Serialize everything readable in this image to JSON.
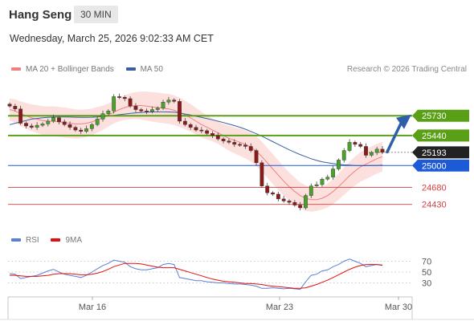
{
  "header": {
    "title": "Hang Seng",
    "timeframe": "30 MIN"
  },
  "timestamp": "Wednesday, March 25, 2026 9:02:33 AM CET",
  "credit": "Research © 2026 Trading Central",
  "legend_main": [
    {
      "label": "MA 20 + Bollinger Bands",
      "color": "#f08080"
    },
    {
      "label": "MA 50",
      "color": "#3a5f9f"
    }
  ],
  "legend_rsi": [
    {
      "label": "RSI",
      "color": "#5b7fd6"
    },
    {
      "label": "9MA",
      "color": "#e01010"
    }
  ],
  "colors": {
    "resistance": "#5aa016",
    "pivot": "#1d5bd6",
    "support": "#d84040",
    "last": "#222222",
    "arrow": "#2f5fa8",
    "bull": "#4aa22a",
    "bear": "#8b1a1a"
  },
  "chart_data": [
    {
      "type": "candlestick",
      "title": "Hang Seng",
      "interval": "30 MIN",
      "x_ticks": [
        "Mar 16",
        "Mar 23",
        "Mar 30"
      ],
      "price_levels": [
        {
          "value": 25730,
          "label": "25730",
          "kind": "resistance"
        },
        {
          "value": 25440,
          "label": "25440",
          "kind": "resistance"
        },
        {
          "value": 25193,
          "label": "25193",
          "kind": "last"
        },
        {
          "value": 25000,
          "label": "25000",
          "kind": "pivot"
        },
        {
          "value": 24680,
          "label": "24680",
          "kind": "support"
        },
        {
          "value": 24430,
          "label": "24430",
          "kind": "support"
        }
      ],
      "ylim": [
        24250,
        26250
      ],
      "close_series": [
        25870,
        25830,
        25620,
        25580,
        25560,
        25590,
        25610,
        25650,
        25700,
        25640,
        25600,
        25560,
        25520,
        25500,
        25540,
        25600,
        25680,
        25760,
        25800,
        26010,
        26000,
        25980,
        25870,
        25820,
        25800,
        25790,
        25820,
        25840,
        25930,
        25960,
        25940,
        25650,
        25600,
        25560,
        25520,
        25510,
        25470,
        25440,
        25390,
        25360,
        25340,
        25310,
        25300,
        25280,
        25220,
        25040,
        24700,
        24600,
        24580,
        24510,
        24480,
        24460,
        24420,
        24380,
        24560,
        24700,
        24720,
        24800,
        24830,
        24950,
        25080,
        25220,
        25340,
        25310,
        25280,
        25150,
        25190,
        25240,
        25193
      ],
      "ma20": [
        25820,
        25800,
        25760,
        25730,
        25700,
        25680,
        25660,
        25650,
        25650,
        25640,
        25630,
        25620,
        25610,
        25610,
        25620,
        25640,
        25670,
        25700,
        25740,
        25780,
        25820,
        25850,
        25870,
        25880,
        25880,
        25870,
        25860,
        25850,
        25840,
        25830,
        25810,
        25780,
        25740,
        25700,
        25650,
        25600,
        25560,
        25520,
        25480,
        25440,
        25400,
        25370,
        25340,
        25310,
        25270,
        25210,
        25130,
        25040,
        24950,
        24860,
        24770,
        24690,
        24620,
        24560,
        24520,
        24500,
        24500,
        24520,
        24560,
        24620,
        24690,
        24770,
        24850,
        24920,
        24980,
        25020,
        25060,
        25100,
        25130
      ],
      "ma50": [
        25600,
        25620,
        25640,
        25660,
        25680,
        25690,
        25700,
        25705,
        25710,
        25712,
        25712,
        25710,
        25708,
        25705,
        25705,
        25708,
        25712,
        25718,
        25725,
        25735,
        25745,
        25755,
        25765,
        25772,
        25778,
        25782,
        25785,
        25786,
        25786,
        25785,
        25782,
        25770,
        25755,
        25740,
        25722,
        25705,
        25688,
        25670,
        25650,
        25630,
        25608,
        25585,
        25560,
        25532,
        25500,
        25465,
        25430,
        25390,
        25350,
        25310,
        25270,
        25230,
        25195,
        25160,
        25130,
        25100,
        25075,
        25055,
        25040,
        25028,
        25018,
        25010,
        25005,
        25000,
        24998,
        24998,
        25000,
        25002,
        25005
      ],
      "projection": {
        "from": 25200,
        "to": 25700
      }
    },
    {
      "type": "line",
      "title": "RSI",
      "series": [
        {
          "name": "RSI",
          "values": [
            47,
            46,
            38,
            40,
            42,
            44,
            48,
            52,
            55,
            50,
            46,
            44,
            42,
            40,
            44,
            50,
            56,
            62,
            66,
            72,
            70,
            68,
            60,
            56,
            54,
            54,
            56,
            58,
            64,
            66,
            64,
            40,
            38,
            36,
            34,
            34,
            32,
            31,
            30,
            30,
            29,
            28,
            28,
            27,
            26,
            24,
            20,
            20,
            21,
            20,
            19,
            20,
            19,
            18,
            32,
            44,
            46,
            52,
            54,
            60,
            64,
            70,
            74,
            70,
            66,
            60,
            62,
            64,
            62
          ]
        },
        {
          "name": "9MA",
          "values": [
            44,
            44,
            43,
            42,
            42,
            42,
            43,
            44,
            46,
            47,
            47,
            47,
            46,
            45,
            45,
            46,
            48,
            51,
            55,
            60,
            63,
            66,
            66,
            66,
            65,
            63,
            61,
            59,
            58,
            58,
            58,
            55,
            52,
            49,
            46,
            43,
            40,
            37,
            35,
            33,
            32,
            31,
            30,
            29,
            29,
            28,
            27,
            25,
            24,
            23,
            22,
            21,
            20,
            20,
            21,
            24,
            27,
            31,
            35,
            40,
            45,
            50,
            55,
            59,
            62,
            64,
            64,
            64,
            63
          ]
        }
      ],
      "yticks": [
        70,
        50,
        30
      ],
      "ylim": [
        10,
        90
      ]
    }
  ]
}
